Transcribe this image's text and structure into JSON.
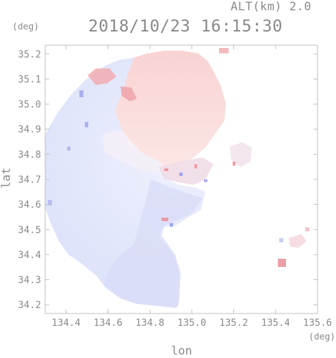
{
  "header": {
    "altitude": "ALT(km) 2.0",
    "timestamp": "2018/10/23 16:15:30"
  },
  "axes": {
    "x_unit": "(deg)",
    "y_unit": "(deg)",
    "x_title": "lon",
    "y_title": "lat",
    "x_ticks": [
      "134.4",
      "134.6",
      "134.8",
      "135.0",
      "135.2",
      "135.4",
      "135.6"
    ],
    "y_ticks": [
      "35.2",
      "35.1",
      "35.0",
      "34.9",
      "34.8",
      "34.7",
      "34.6",
      "34.5",
      "34.4",
      "34.3",
      "34.2"
    ],
    "x_range": [
      134.3,
      135.6
    ],
    "y_range": [
      34.165,
      35.235
    ]
  },
  "colors": {
    "frame": "#bdbdbd",
    "text": "#8a8a8a",
    "approaching_blue": "#dfe3fb",
    "receding_red": "#fadada"
  }
}
